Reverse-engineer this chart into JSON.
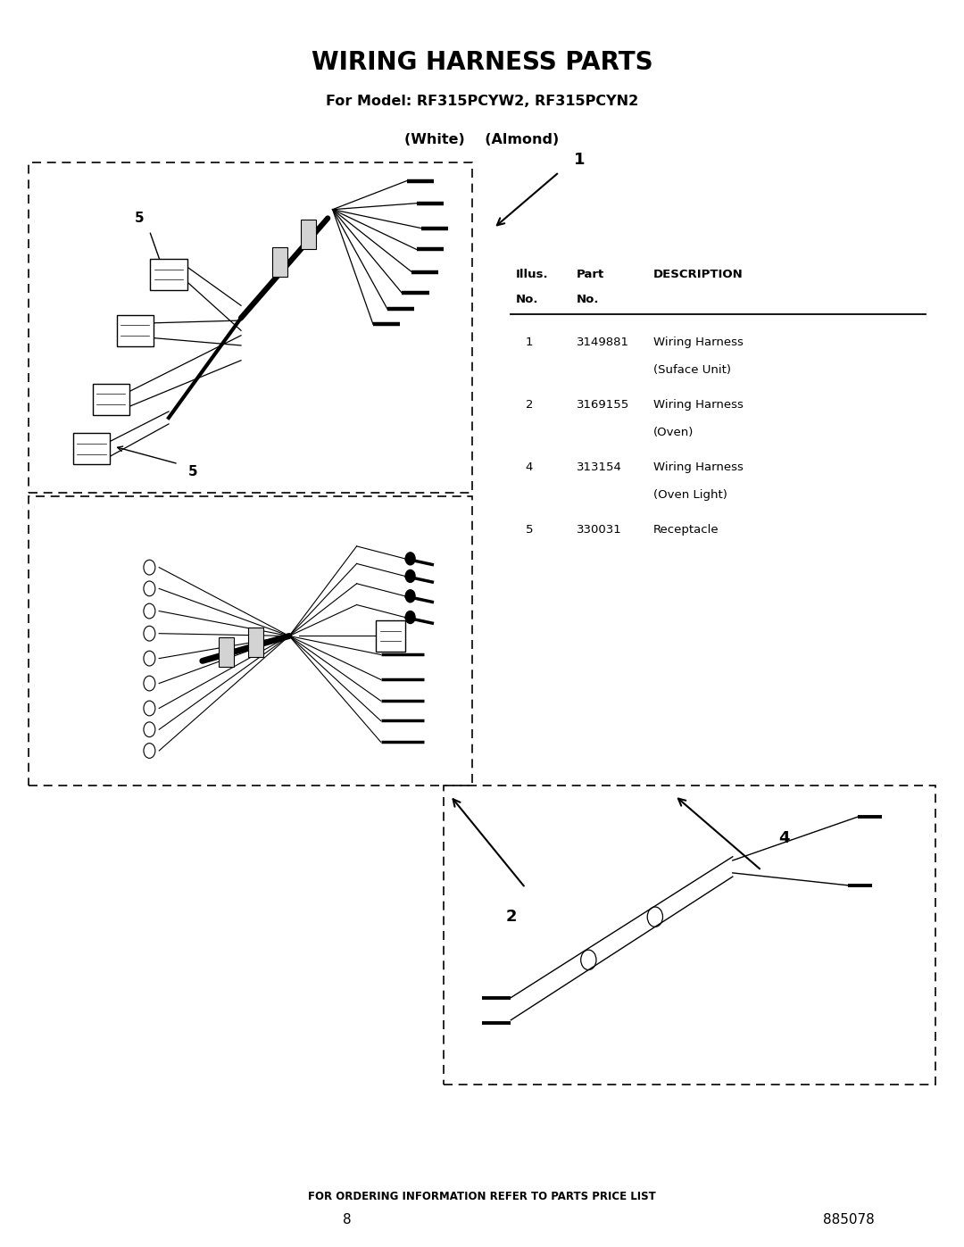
{
  "title": "WIRING HARNESS PARTS",
  "subtitle1": "For Model: RF315PCYW2, RF315PCYN2",
  "subtitle2": "(White)    (Almond)",
  "bg_color": "#ffffff",
  "footer": "FOR ORDERING INFORMATION REFER TO PARTS PRICE LIST",
  "page": "8",
  "doc": "885078",
  "table_rows": [
    {
      "illus": "1",
      "part": "3149881",
      "desc": [
        "Wiring Harness",
        "(Suface Unit)"
      ]
    },
    {
      "illus": "2",
      "part": "3169155",
      "desc": [
        "Wiring Harness",
        "(Oven)"
      ]
    },
    {
      "illus": "4",
      "part": "313154",
      "desc": [
        "Wiring Harness",
        "(Oven Light)"
      ]
    },
    {
      "illus": "5",
      "part": "330031",
      "desc": [
        "Receptacle"
      ]
    }
  ]
}
